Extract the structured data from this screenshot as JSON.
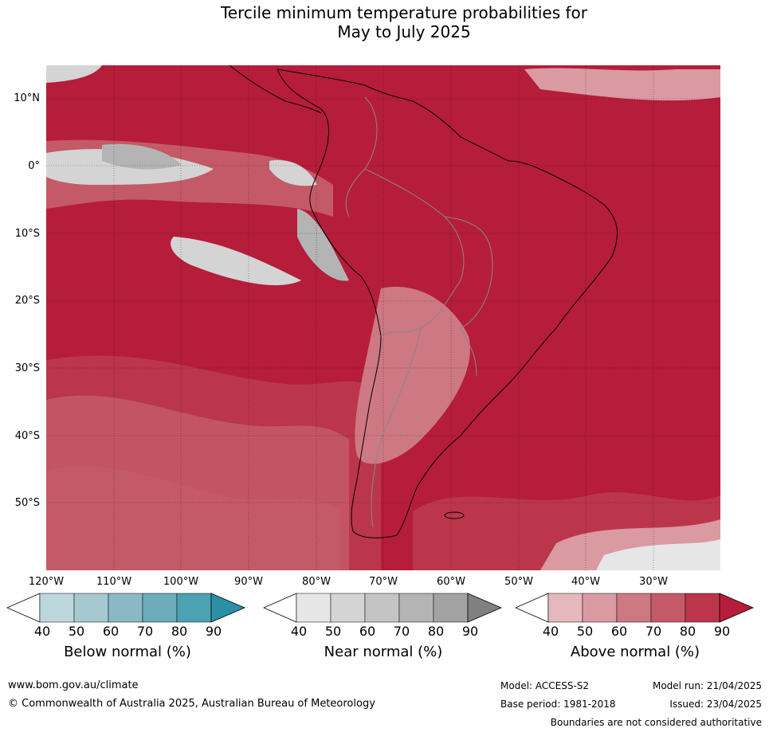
{
  "title": {
    "line1": "Tercile minimum temperature probabilities for",
    "line2": "May to July 2025"
  },
  "map": {
    "latitude_labels": [
      "10°N",
      "0°",
      "10°S",
      "20°S",
      "30°S",
      "40°S",
      "50°S"
    ],
    "longitude_labels": [
      "120°W",
      "110°W",
      "100°W",
      "90°W",
      "80°W",
      "70°W",
      "60°W",
      "50°W",
      "40°W",
      "30°W"
    ],
    "extent": {
      "lon_min": -120,
      "lon_max": -20,
      "lat_min": -60,
      "lat_max": 15
    }
  },
  "legends": [
    {
      "title": "Below normal (%)",
      "ticks": [
        "40",
        "50",
        "60",
        "70",
        "80",
        "90"
      ],
      "colors": [
        "#ffffff",
        "#bcd7dc",
        "#a6c9d0",
        "#8ab9c5",
        "#6cacbb",
        "#4aa2b2",
        "#2b8fa5"
      ]
    },
    {
      "title": "Near normal (%)",
      "ticks": [
        "40",
        "50",
        "60",
        "70",
        "80",
        "90"
      ],
      "colors": [
        "#ffffff",
        "#e6e6e6",
        "#d4d4d4",
        "#c4c4c4",
        "#b4b4b4",
        "#a2a2a2",
        "#808080"
      ]
    },
    {
      "title": "Above normal (%)",
      "ticks": [
        "40",
        "50",
        "60",
        "70",
        "80",
        "90"
      ],
      "colors": [
        "#ffffff",
        "#e4b8bd",
        "#d99aa2",
        "#cd7882",
        "#c45a67",
        "#bb364b",
        "#b51d3a"
      ]
    }
  ],
  "footer": {
    "website": "www.bom.gov.au/climate",
    "copyright": "© Commonwealth of Australia 2025, Australian Bureau of Meteorology",
    "model": "Model: ACCESS-S2",
    "base_period": "Base period: 1981-2018",
    "model_run": "Model run: 21/04/2025",
    "issued": "Issued: 23/04/2025",
    "disclaimer": "Boundaries are not considered authoritative"
  }
}
